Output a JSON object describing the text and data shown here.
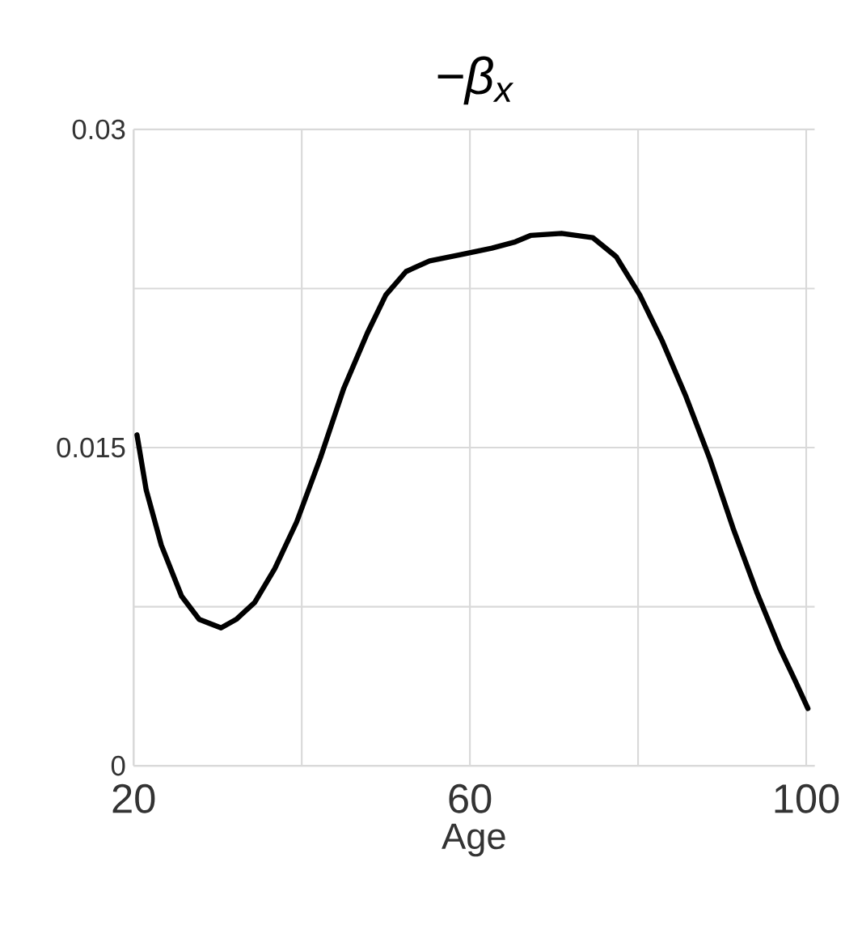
{
  "chart_data": {
    "type": "line",
    "title": "−β$_{x}$",
    "xlabel": "Age",
    "x": [
      20.4,
      21.5,
      23.3,
      25.7,
      27.8,
      30.4,
      32.2,
      34.4,
      36.8,
      39.4,
      42.2,
      45.0,
      47.8,
      50.0,
      52.4,
      55.2,
      58.9,
      62.6,
      65.4,
      67.2,
      70.9,
      74.6,
      77.4,
      80.2,
      82.9,
      85.7,
      88.5,
      91.3,
      94.1,
      96.9,
      98.7,
      100.2
    ],
    "values": [
      0.0156,
      0.013,
      0.0104,
      0.008,
      0.0069,
      0.0065,
      0.0069,
      0.0077,
      0.0093,
      0.0115,
      0.0145,
      0.0178,
      0.0204,
      0.0222,
      0.0233,
      0.0238,
      0.0241,
      0.0244,
      0.0247,
      0.025,
      0.0251,
      0.0249,
      0.024,
      0.0222,
      0.02,
      0.0174,
      0.0145,
      0.0112,
      0.0082,
      0.0055,
      0.004,
      0.0027
    ],
    "color": "#000000",
    "xlim": [
      20,
      101
    ],
    "ylim": [
      0,
      0.03
    ],
    "xticks": [
      20,
      {
        "value": 40,
        "label": null
      },
      60,
      {
        "value": 80,
        "label": null
      },
      100
    ],
    "yticks": [
      0,
      {
        "value": 0.0075,
        "label": null
      },
      0.015,
      {
        "value": 0.0225,
        "label": null
      },
      0.03
    ],
    "grid": true
  }
}
